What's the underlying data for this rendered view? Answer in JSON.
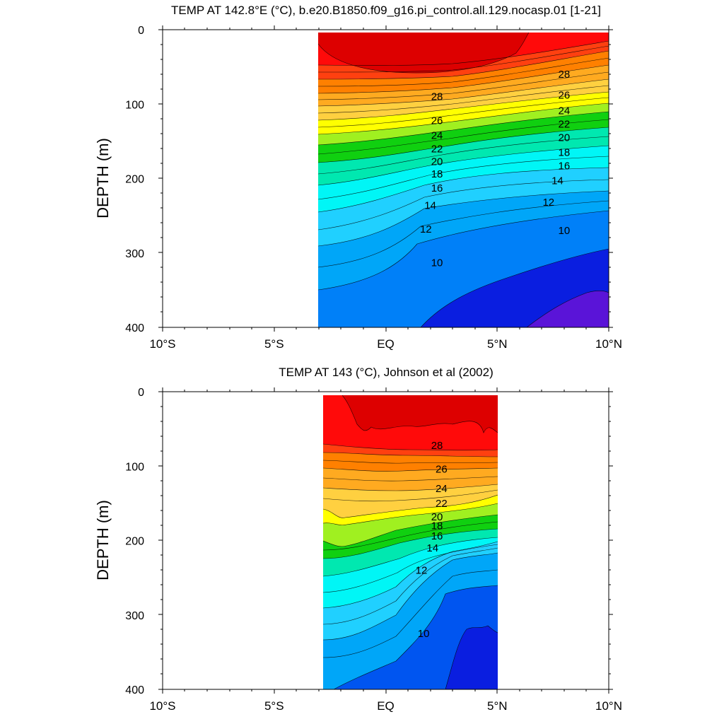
{
  "chart_data": [
    {
      "type": "contour",
      "title": "TEMP AT 142.8°E (°C), b.e20.B1850.f09_g16.pi_control.all.129.nocasp.01 [1-21]",
      "ylabel": "DEPTH (m)",
      "xlabel": "",
      "xlim": [
        -10,
        10
      ],
      "ylim": [
        400,
        0
      ],
      "x_ticks": [
        {
          "value": -10,
          "label": "10°S"
        },
        {
          "value": -5,
          "label": "5°S"
        },
        {
          "value": 0,
          "label": "EQ"
        },
        {
          "value": 5,
          "label": "5°N"
        },
        {
          "value": 10,
          "label": "10°N"
        }
      ],
      "y_ticks": [
        0,
        100,
        200,
        300,
        400
      ],
      "data_extent": {
        "lon_start": -3,
        "lon_end": 10,
        "depth_start": 5,
        "depth_end": 400
      },
      "contour_interval": 1,
      "contour_labels": [
        {
          "value": 28,
          "lon": 2.3,
          "depth": 90
        },
        {
          "value": 26,
          "lon": 2.3,
          "depth": 122
        },
        {
          "value": 24,
          "lon": 2.3,
          "depth": 142
        },
        {
          "value": 22,
          "lon": 2.3,
          "depth": 160
        },
        {
          "value": 20,
          "lon": 2.3,
          "depth": 177
        },
        {
          "value": 18,
          "lon": 2.3,
          "depth": 194
        },
        {
          "value": 16,
          "lon": 2.3,
          "depth": 213
        },
        {
          "value": 14,
          "lon": 2.0,
          "depth": 236
        },
        {
          "value": 12,
          "lon": 1.8,
          "depth": 268
        },
        {
          "value": 10,
          "lon": 2.3,
          "depth": 313
        },
        {
          "value": 28,
          "lon": 8.0,
          "depth": 60
        },
        {
          "value": 26,
          "lon": 8.0,
          "depth": 88
        },
        {
          "value": 24,
          "lon": 8.0,
          "depth": 109
        },
        {
          "value": 22,
          "lon": 8.0,
          "depth": 127
        },
        {
          "value": 20,
          "lon": 8.0,
          "depth": 145
        },
        {
          "value": 18,
          "lon": 8.0,
          "depth": 165
        },
        {
          "value": 16,
          "lon": 8.0,
          "depth": 183
        },
        {
          "value": 14,
          "lon": 7.7,
          "depth": 203
        },
        {
          "value": 12,
          "lon": 7.3,
          "depth": 232
        },
        {
          "value": 10,
          "lon": 8.0,
          "depth": 270
        }
      ]
    },
    {
      "type": "contour",
      "title": "TEMP AT 143 (°C), Johnson et al (2002)",
      "ylabel": "DEPTH (m)",
      "xlabel": "",
      "xlim": [
        -10,
        10
      ],
      "ylim": [
        400,
        0
      ],
      "x_ticks": [
        {
          "value": -10,
          "label": "10°S"
        },
        {
          "value": -5,
          "label": "5°S"
        },
        {
          "value": 0,
          "label": "EQ"
        },
        {
          "value": 5,
          "label": "5°N"
        },
        {
          "value": 10,
          "label": "10°N"
        }
      ],
      "y_ticks": [
        0,
        100,
        200,
        300,
        400
      ],
      "data_extent": {
        "lon_start": -2.8,
        "lon_end": 5,
        "depth_start": 5,
        "depth_end": 400
      },
      "contour_interval": 1,
      "contour_labels": [
        {
          "value": 28,
          "lon": 2.3,
          "depth": 72
        },
        {
          "value": 26,
          "lon": 2.5,
          "depth": 104
        },
        {
          "value": 24,
          "lon": 2.5,
          "depth": 130
        },
        {
          "value": 22,
          "lon": 2.5,
          "depth": 150
        },
        {
          "value": 20,
          "lon": 2.3,
          "depth": 168
        },
        {
          "value": 18,
          "lon": 2.3,
          "depth": 180
        },
        {
          "value": 16,
          "lon": 2.3,
          "depth": 194
        },
        {
          "value": 14,
          "lon": 2.1,
          "depth": 210
        },
        {
          "value": 12,
          "lon": 1.6,
          "depth": 240
        },
        {
          "value": 10,
          "lon": 1.7,
          "depth": 325
        }
      ]
    }
  ]
}
